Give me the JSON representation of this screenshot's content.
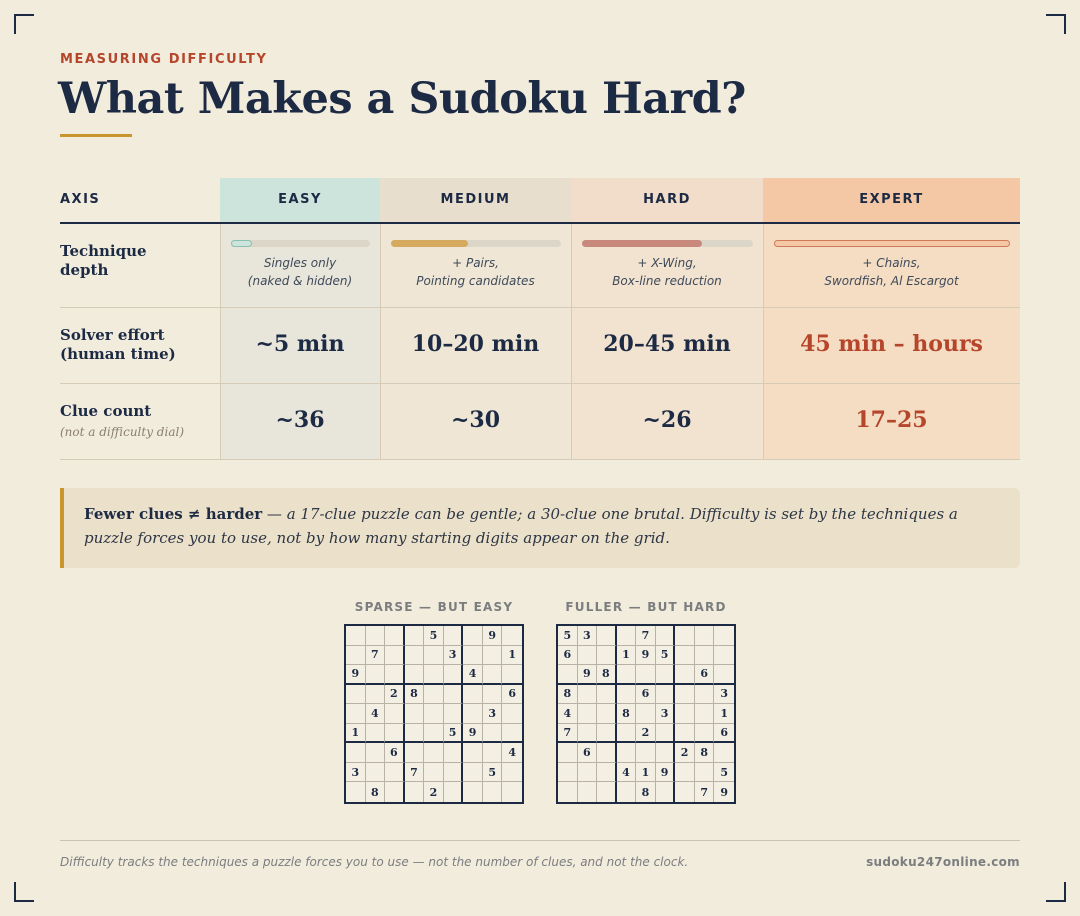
{
  "eyebrow": "MEASURING DIFFICULTY",
  "title": "What Makes a Sudoku Hard?",
  "table": {
    "headers": {
      "axis": "AXIS",
      "easy": "EASY",
      "medium": "MEDIUM",
      "hard": "HARD",
      "expert": "EXPERT"
    },
    "rows": {
      "technique": {
        "label": "Technique depth",
        "easy": "Singles only\n(naked & hidden)",
        "medium": "+ Pairs,\nPointing candidates",
        "hard": "+ X-Wing,\nBox-line reduction",
        "expert": "+ Chains,\nSwordfish, Al Escargot",
        "depth_fraction": {
          "easy": 0.15,
          "medium": 0.45,
          "hard": 0.7,
          "expert": 1.0
        }
      },
      "effort": {
        "label": "Solver effort (human time)",
        "easy": "~5 min",
        "medium": "10–20 min",
        "hard": "20–45 min",
        "expert": "45 min – hours"
      },
      "clues": {
        "label": "Clue count",
        "sublabel": "(not a difficulty dial)",
        "easy": "~36",
        "medium": "~30",
        "hard": "~26",
        "expert": "17–25"
      }
    },
    "colors": {
      "easy": "#cde4dc",
      "medium": "#d5aa5e",
      "hard": "#c9887c",
      "expert": "#f5c8a5",
      "accent": "#b5452b"
    }
  },
  "callout": {
    "bold": "Fewer clues ≠ harder",
    "text": " — a 17-clue puzzle can be gentle; a 30-clue one brutal. Difficulty is set by the techniques a puzzle forces you to use, not by how many starting digits appear on the grid."
  },
  "grids": {
    "sparse": {
      "caption": "SPARSE — BUT EASY",
      "cells": [
        "",
        "",
        "",
        "",
        "5",
        "",
        "",
        "9",
        "",
        "",
        "7",
        "",
        "",
        "",
        "3",
        "",
        "",
        "1",
        "9",
        "",
        "",
        "",
        "",
        "",
        "4",
        "",
        "",
        "",
        "",
        "2",
        "8",
        "",
        "",
        "",
        "",
        "6",
        "",
        "4",
        "",
        "",
        "",
        "",
        "",
        "3",
        "",
        "1",
        "",
        "",
        "",
        "",
        "5",
        "9",
        "",
        "",
        "",
        "",
        "6",
        "",
        "",
        "",
        "",
        "",
        "4",
        "3",
        "",
        "",
        "7",
        "",
        "",
        "",
        "5",
        "",
        "",
        "8",
        "",
        "",
        "2",
        "",
        "",
        "",
        ""
      ]
    },
    "fuller": {
      "caption": "FULLER — BUT HARD",
      "cells": [
        "5",
        "3",
        "",
        "",
        "7",
        "",
        "",
        "",
        "",
        "6",
        "",
        "",
        "1",
        "9",
        "5",
        "",
        "",
        "",
        "",
        "9",
        "8",
        "",
        "",
        "",
        "",
        "6",
        "",
        "8",
        "",
        "",
        "",
        "6",
        "",
        "",
        "",
        "3",
        "4",
        "",
        "",
        "8",
        "",
        "3",
        "",
        "",
        "1",
        "7",
        "",
        "",
        "",
        "2",
        "",
        "",
        "",
        "6",
        "",
        "6",
        "",
        "",
        "",
        "",
        "2",
        "8",
        "",
        "",
        "",
        "",
        "4",
        "1",
        "9",
        "",
        "",
        "5",
        "",
        "",
        "",
        "",
        "8",
        "",
        "",
        "7",
        "9"
      ]
    }
  },
  "footer": {
    "note": "Difficulty tracks the techniques a puzzle forces you to use — not the number of clues, and not the clock.",
    "site": "sudoku247online.com"
  }
}
